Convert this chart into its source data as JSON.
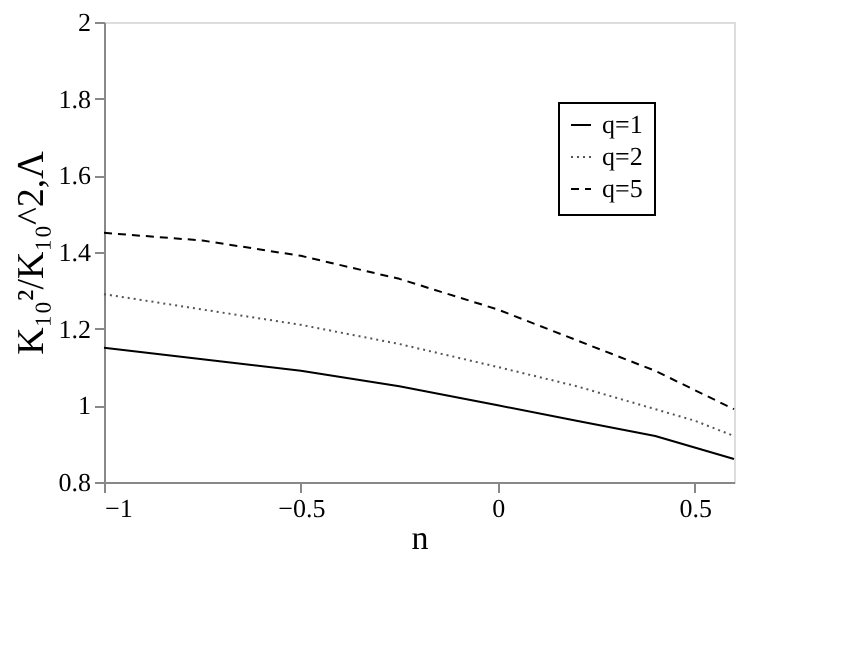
{
  "chart_data": {
    "type": "line",
    "xlabel": "n",
    "ylabel": "K₁₀²/K₁₀^2,Λ",
    "x": [
      -1,
      -0.75,
      -0.5,
      -0.25,
      0,
      0.2,
      0.4,
      0.5,
      0.6
    ],
    "series": [
      {
        "name": "q=1",
        "color": "#000000",
        "line_style": "solid",
        "values": [
          1.15,
          1.12,
          1.09,
          1.05,
          1.0,
          0.96,
          0.92,
          0.89,
          0.86
        ]
      },
      {
        "name": "q=2",
        "color": "#555555",
        "line_style": "dotted",
        "values": [
          1.29,
          1.25,
          1.21,
          1.16,
          1.1,
          1.05,
          0.99,
          0.96,
          0.92
        ]
      },
      {
        "name": "q=5",
        "color": "#000000",
        "line_style": "dashed",
        "values": [
          1.45,
          1.43,
          1.39,
          1.33,
          1.25,
          1.17,
          1.09,
          1.04,
          0.99
        ]
      }
    ],
    "xlim": [
      -1,
      0.6
    ],
    "xticks": [
      -1,
      -0.5,
      0,
      0.5
    ],
    "ylim": [
      0.8,
      2
    ],
    "yticks": [
      0.8,
      1,
      1.2,
      1.4,
      1.6,
      1.8,
      2
    ],
    "legend": "top right",
    "grid": false
  }
}
